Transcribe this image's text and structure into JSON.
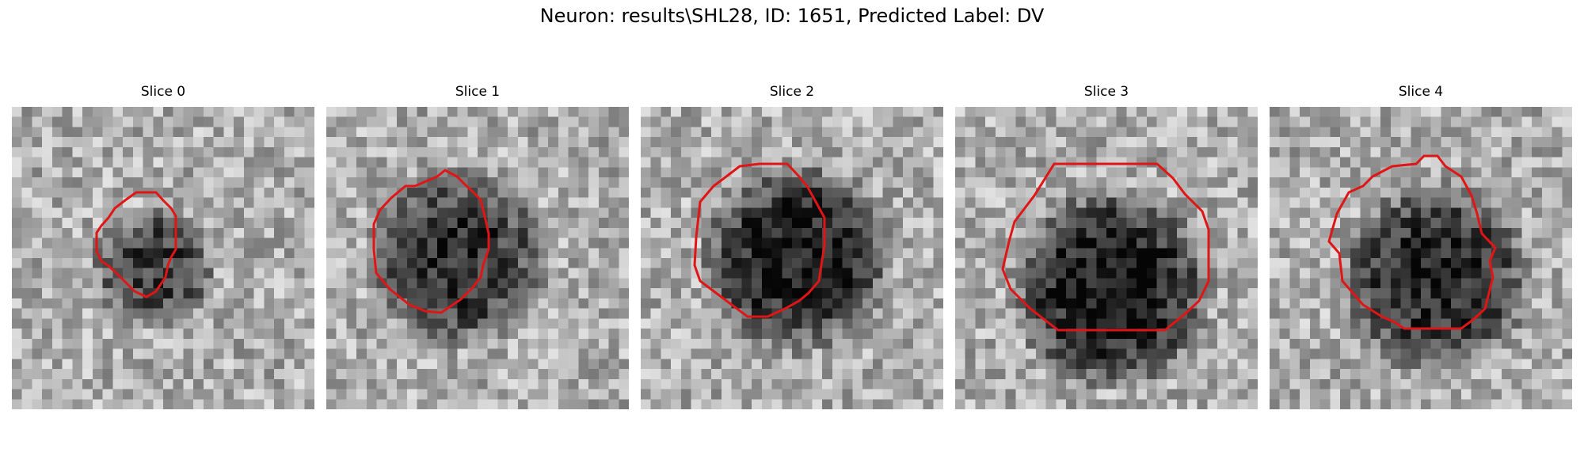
{
  "figure": {
    "title": "Neuron: results\\SHL28, ID: 1651, Predicted Label: DV"
  },
  "slices": [
    {
      "title": "Slice 0"
    },
    {
      "title": "Slice 1"
    },
    {
      "title": "Slice 2"
    },
    {
      "title": "Slice 3"
    },
    {
      "title": "Slice 4"
    }
  ],
  "colors": {
    "contour": "#e01515",
    "colormap": "grayscale"
  }
}
